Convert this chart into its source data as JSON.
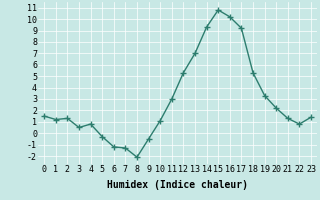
{
  "x": [
    0,
    1,
    2,
    3,
    4,
    5,
    6,
    7,
    8,
    9,
    10,
    11,
    12,
    13,
    14,
    15,
    16,
    17,
    18,
    19,
    20,
    21,
    22,
    23
  ],
  "y": [
    1.5,
    1.2,
    1.3,
    0.5,
    0.8,
    -0.3,
    -1.2,
    -1.3,
    -2.1,
    -0.5,
    1.1,
    3.0,
    5.3,
    7.0,
    9.3,
    10.8,
    10.2,
    9.2,
    5.3,
    3.3,
    2.2,
    1.3,
    0.8,
    1.4
  ],
  "xlim": [
    -0.5,
    23.5
  ],
  "ylim": [
    -2.7,
    11.5
  ],
  "yticks": [
    -2,
    -1,
    0,
    1,
    2,
    3,
    4,
    5,
    6,
    7,
    8,
    9,
    10,
    11
  ],
  "xticks": [
    0,
    1,
    2,
    3,
    4,
    5,
    6,
    7,
    8,
    9,
    10,
    11,
    12,
    13,
    14,
    15,
    16,
    17,
    18,
    19,
    20,
    21,
    22,
    23
  ],
  "xlabel": "Humidex (Indice chaleur)",
  "line_color": "#2d7d6e",
  "bg_color": "#c8e8e5",
  "grid_color": "#ffffff",
  "marker": "+",
  "linewidth": 1.0,
  "markersize": 4,
  "markeredgewidth": 1.0,
  "xlabel_fontsize": 7,
  "tick_fontsize": 6
}
